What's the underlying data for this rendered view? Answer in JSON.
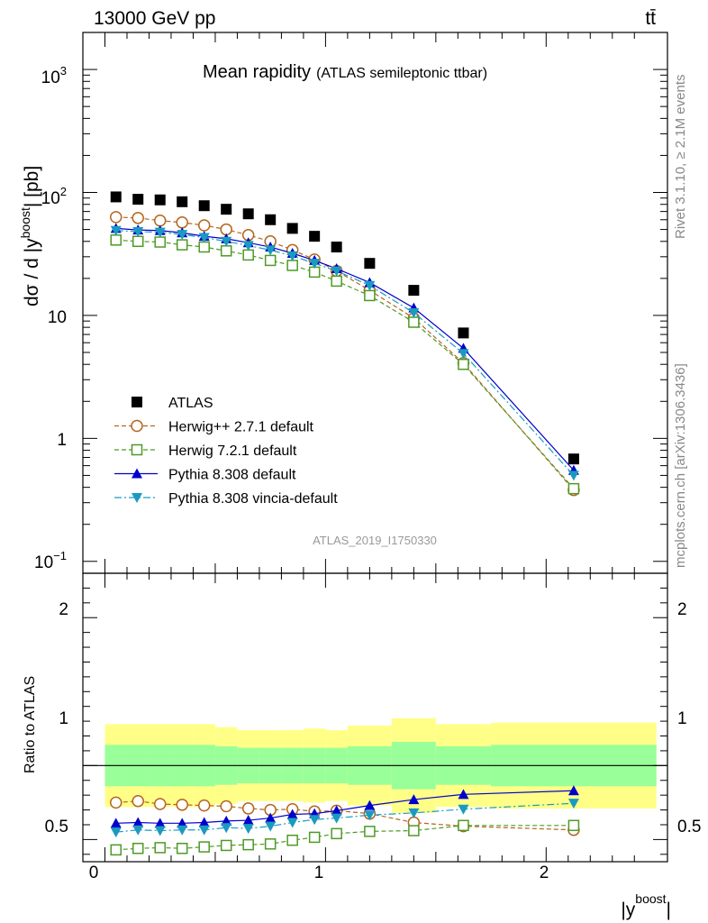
{
  "header": {
    "energy_label": "13000 GeV pp",
    "process_label": "tt̄"
  },
  "side_text": {
    "rivet": "Rivet 3.1.10, ≥ 2.1M events",
    "mcplots": "mcplots.cern.ch [arXiv:1306.3436]"
  },
  "analysis_id": "ATLAS_2019_I1750330",
  "chart_data": {
    "type": "scatter",
    "title": "Mean rapidity",
    "subtitle": "(ATLAS semileptonic ttbar)",
    "xlabel_base": "|y",
    "xlabel_sup": "boost",
    "xlabel_end": "|",
    "ylabel_base": "dσ / d |y",
    "ylabel_sup": "boost",
    "ylabel_end": "| [pb]",
    "ratio_ylabel": "Ratio to ATLAS",
    "x": [
      0.05,
      0.15,
      0.25,
      0.35,
      0.45,
      0.55,
      0.65,
      0.75,
      0.85,
      0.95,
      1.05,
      1.2,
      1.4,
      1.625,
      2.125
    ],
    "xlim": [
      -0.1,
      2.55
    ],
    "ylim_log": [
      0.08,
      2000
    ],
    "ratio_ylim": [
      0.35,
      2.3
    ],
    "x_ticks": [
      "0",
      "1",
      "2"
    ],
    "y_ticks_main": [
      "10",
      "1",
      "10"
    ],
    "y_tick_sups": [
      "3",
      "2",
      "−1"
    ],
    "ratio_ticks": [
      "2",
      "1",
      "0.5"
    ],
    "bin_edges": [
      0.0,
      0.1,
      0.2,
      0.3,
      0.4,
      0.5,
      0.6,
      0.7,
      0.8,
      0.9,
      1.0,
      1.1,
      1.3,
      1.5,
      1.75,
      2.5
    ],
    "band_green": [
      0.14,
      0.14,
      0.14,
      0.14,
      0.14,
      0.13,
      0.12,
      0.12,
      0.12,
      0.12,
      0.12,
      0.13,
      0.16,
      0.13,
      0.14
    ],
    "band_yellow": [
      0.28,
      0.28,
      0.28,
      0.28,
      0.28,
      0.26,
      0.24,
      0.24,
      0.24,
      0.25,
      0.24,
      0.27,
      0.32,
      0.28,
      0.29
    ],
    "series": [
      {
        "name": "ATLAS",
        "color": "#000000",
        "marker": "square-filled",
        "values": [
          92,
          88,
          87,
          84,
          78,
          73,
          67,
          60,
          51,
          44,
          36,
          26.5,
          16,
          7.2,
          0.68
        ],
        "ratio": [
          1,
          1,
          1,
          1,
          1,
          1,
          1,
          1,
          1,
          1,
          1,
          1,
          1,
          1,
          1
        ]
      },
      {
        "name": "Herwig++ 2.7.1 default",
        "color": "#b5651d",
        "marker": "circle-open",
        "dash": "5,3",
        "values": [
          63,
          62,
          59,
          57,
          54,
          50,
          45,
          40,
          34,
          28.5,
          23,
          16,
          9.5,
          4.1,
          0.38
        ],
        "ratio": [
          0.75,
          0.76,
          0.74,
          0.735,
          0.73,
          0.725,
          0.71,
          0.7,
          0.705,
          0.69,
          0.695,
          0.675,
          0.615,
          0.59,
          0.565
        ]
      },
      {
        "name": "Herwig 7.2.1 default",
        "color": "#4e9a25",
        "marker": "square-open",
        "dash": "5,3",
        "values": [
          41,
          40,
          39.5,
          37.5,
          36,
          33.5,
          31,
          28,
          25.5,
          22.5,
          19,
          14.5,
          8.8,
          4.0,
          0.39
        ],
        "ratio": [
          0.43,
          0.44,
          0.445,
          0.44,
          0.45,
          0.46,
          0.465,
          0.47,
          0.495,
          0.515,
          0.54,
          0.555,
          0.56,
          0.595,
          0.595
        ]
      },
      {
        "name": "Pythia 8.308 default",
        "color": "#0000cc",
        "marker": "triangle-up",
        "dash": "",
        "values": [
          51,
          49.5,
          49,
          47,
          44,
          42,
          39,
          36,
          32,
          28,
          24,
          18.5,
          11.5,
          5.4,
          0.55
        ],
        "ratio": [
          0.61,
          0.615,
          0.61,
          0.61,
          0.615,
          0.625,
          0.63,
          0.645,
          0.67,
          0.675,
          0.695,
          0.73,
          0.77,
          0.805,
          0.83
        ]
      },
      {
        "name": "Pythia 8.308 vincia-default",
        "color": "#1a9ac0",
        "marker": "triangle-down",
        "dash": "8,3,2,3",
        "values": [
          49,
          48,
          47.5,
          45.5,
          43,
          40,
          37,
          34,
          30.5,
          26.5,
          23,
          17.5,
          10.5,
          4.9,
          0.5
        ],
        "ratio": [
          0.55,
          0.565,
          0.56,
          0.565,
          0.565,
          0.58,
          0.575,
          0.59,
          0.615,
          0.635,
          0.645,
          0.665,
          0.68,
          0.705,
          0.745
        ]
      }
    ]
  }
}
